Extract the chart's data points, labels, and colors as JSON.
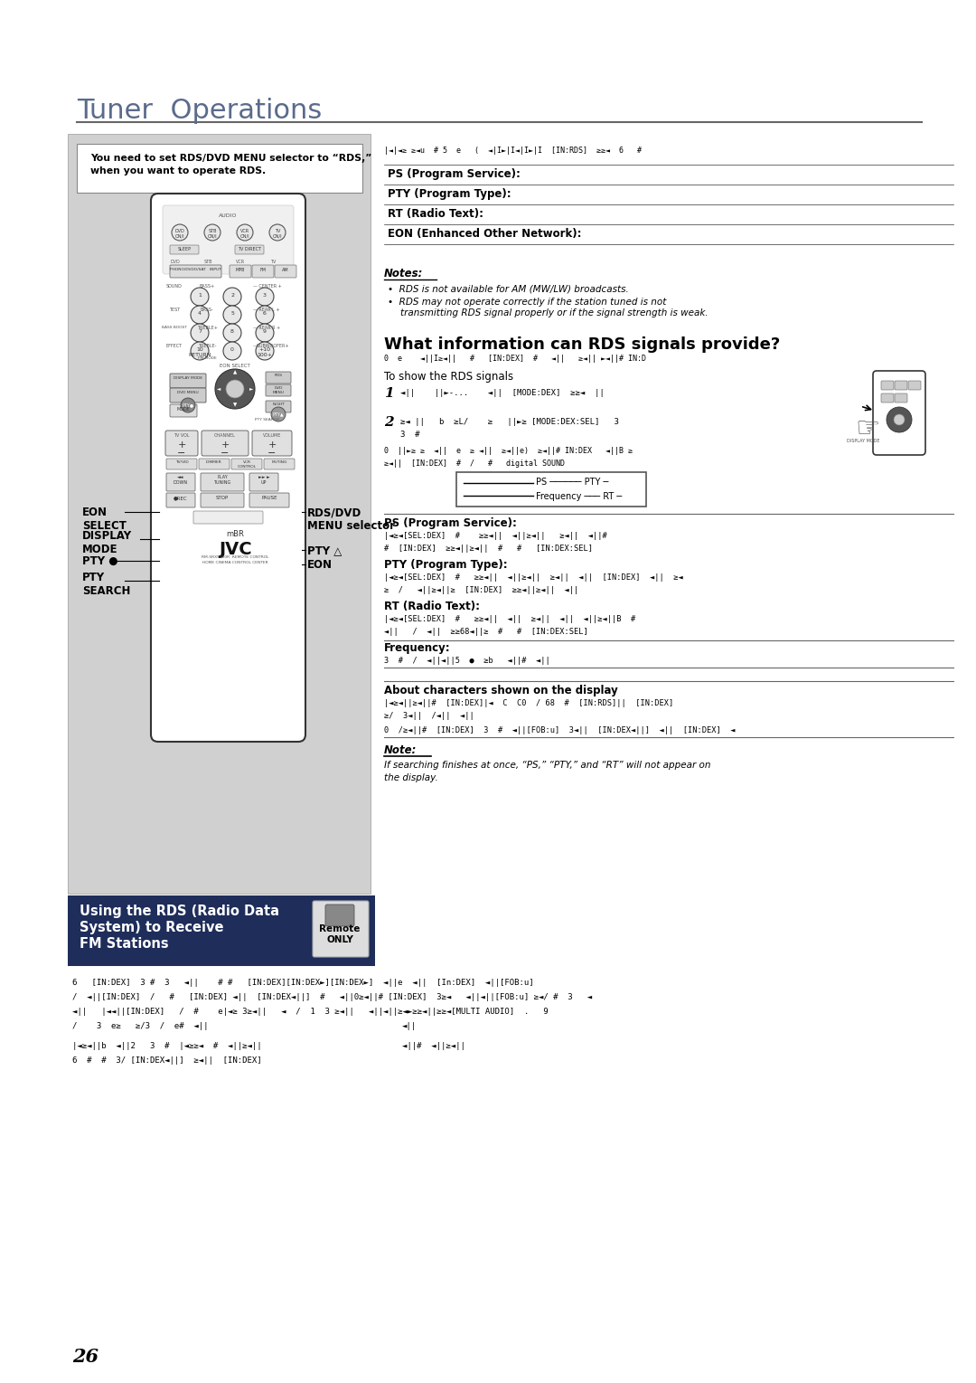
{
  "page_bg": "#ffffff",
  "page_number": "26",
  "title": "Tuner  Operations",
  "title_color": "#5a6b8c",
  "title_fontsize": 22,
  "separator_color": "#555555",
  "section_heading": "What information can RDS signals provide?",
  "section_heading_fontsize": 13,
  "remote_box_bg": "#d0d0d0",
  "remote_box_border": "#aaaaaa",
  "instruction_box_text_line1": "You need to set RDS/DVD MENU selector to “RDS,”",
  "instruction_box_text_line2": "when you want to operate RDS.",
  "labels_left": [
    "EON\nSELECT",
    "DISPLAY\nMODE",
    "PTY ●",
    "PTY\nSEARCH"
  ],
  "labels_right": [
    "RDS/DVD\nMENU selector",
    "PTY △",
    "EON"
  ],
  "notes_title": "Notes:",
  "notes_line1": "RDS is not available for AM (MW/LW) broadcasts.",
  "notes_line2": "RDS may not operate correctly if the station tuned is not",
  "notes_line3": "transmitting RDS signal properly or if the signal strength is weak.",
  "rds_rows": [
    "PS (Program Service):",
    "PTY (Program Type):",
    "RT (Radio Text):",
    "EON (Enhanced Other Network):"
  ],
  "show_rds_title": "To show the RDS signals",
  "ps_section": "PS (Program Service):",
  "pty_section": "PTY (Program Type):",
  "rt_section": "RT (Radio Text):",
  "freq_section": "Frequency:",
  "about_chars": "About characters shown on the display",
  "note_bottom": "Note:",
  "note_bottom_text_line1": "If searching finishes at once, “PS,” “PTY,” and “RT” will not appear on",
  "note_bottom_text_line2": "the display.",
  "box_section_line1": "Using the RDS (Radio Data",
  "box_section_line2": "System) to Receive",
  "box_section_line3": "FM Stations",
  "box_section_bg": "#1e2d5a",
  "box_section_color": "#ffffff",
  "remote_label_line1": "Remote",
  "remote_label_line2": "ONLY"
}
